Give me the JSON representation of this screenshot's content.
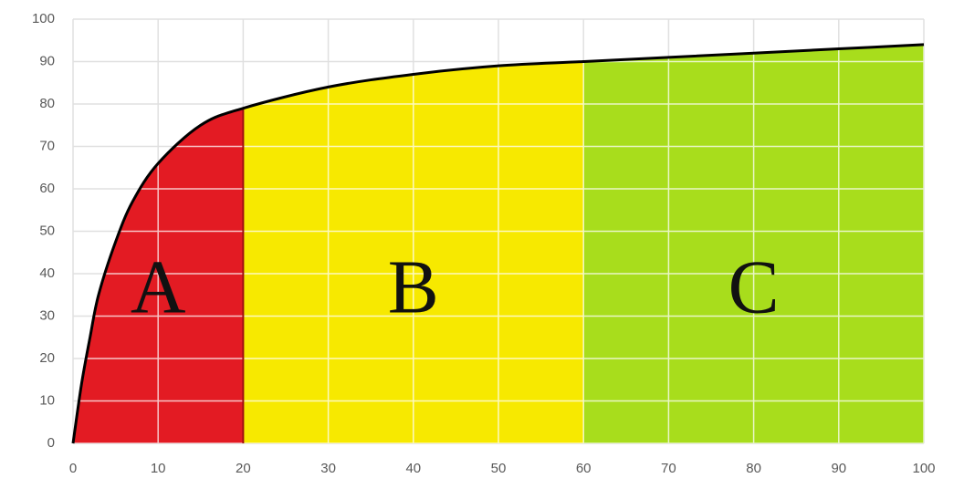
{
  "chart_data": {
    "type": "area",
    "x": [
      0,
      1,
      2,
      3,
      5,
      7,
      10,
      15,
      20,
      30,
      40,
      50,
      60,
      70,
      80,
      90,
      100
    ],
    "values": [
      0,
      14,
      25,
      35,
      47.5,
      57,
      66,
      75,
      79,
      84,
      87,
      89,
      90,
      91,
      92,
      93,
      94
    ],
    "line_color": "#000000",
    "regions": [
      {
        "label": "A",
        "start": 0,
        "end": 20,
        "color": "#e31b23"
      },
      {
        "label": "B",
        "start": 20,
        "end": 60,
        "color": "#f7e900"
      },
      {
        "label": "C",
        "start": 60,
        "end": 100,
        "color": "#a8dd1c"
      }
    ],
    "xlim": [
      0,
      100
    ],
    "xticks": [
      0,
      10,
      20,
      30,
      40,
      50,
      60,
      70,
      80,
      90,
      100
    ],
    "ylim": [
      0,
      100
    ],
    "yticks": [
      0,
      10,
      20,
      30,
      40,
      50,
      60,
      70,
      80,
      90,
      100
    ],
    "grid": true
  }
}
